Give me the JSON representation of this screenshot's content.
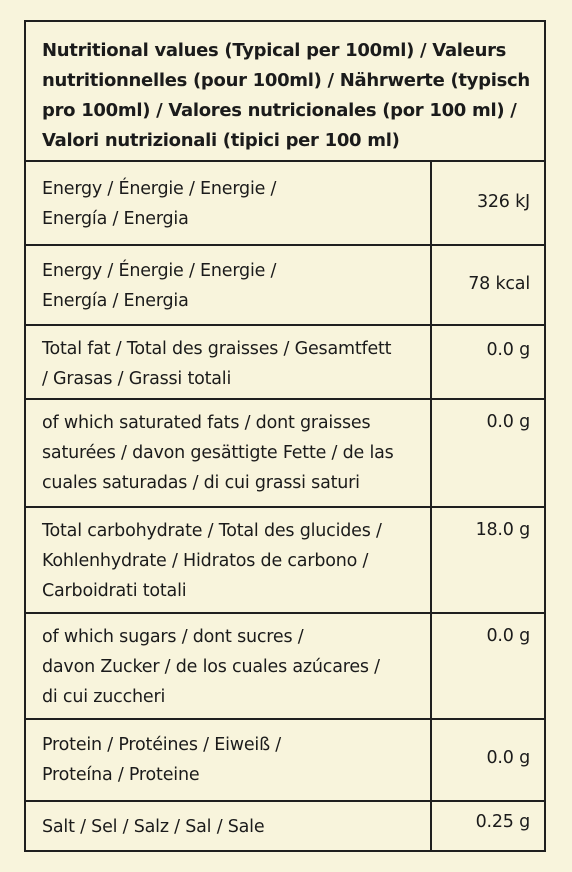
{
  "header": {
    "title": "Nutritional values (Typical per 100ml) / Valeurs\nnutritionnelles (pour 100ml) / Nährwerte (typisch\npro 100ml) / Valores nutricionales (por 100 ml) /\nValori nutrizionali (tipici per 100 ml)"
  },
  "rows": [
    {
      "label": "Energy / Énergie / Energie /\nEnergía / Energia",
      "value": "326 kJ"
    },
    {
      "label": "Energy / Énergie / Energie /\nEnergía / Energia",
      "value": "78 kcal"
    },
    {
      "label": "Total fat / Total des graisses / Gesamtfett\n/ Grasas / Grassi totali",
      "value": "0.0 g"
    },
    {
      "label": "of which saturated fats / dont graisses\nsaturées / davon gesättigte Fette / de las\ncuales saturadas / di cui grassi saturi",
      "value": "0.0 g"
    },
    {
      "label": "Total carbohydrate / Total des glucides /\nKohlenhydrate / Hidratos de carbono /\nCarboidrati totali",
      "value": "18.0 g"
    },
    {
      "label": "of which sugars / dont sucres /\ndavon Zucker / de los cuales azúcares /\ndi cui zuccheri",
      "value": "0.0 g"
    },
    {
      "label": "Protein / Protéines / Eiweiß /\nProteína / Proteine",
      "value": "0.0 g"
    },
    {
      "label": "Salt / Sel / Salz / Sal / Sale",
      "value": "0.25 g"
    }
  ]
}
